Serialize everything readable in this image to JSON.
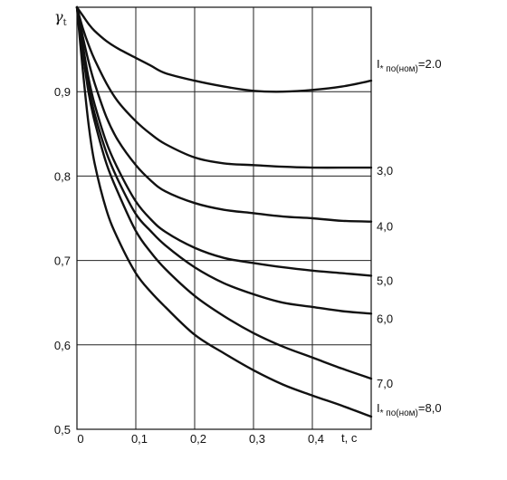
{
  "chart_data": {
    "type": "line",
    "ylabel": "γ",
    "ylabel_sub": "t",
    "xlabel": "t, c",
    "xlim": [
      0,
      0.5
    ],
    "ylim": [
      0.5,
      1.0
    ],
    "grid": true,
    "x_ticks": [
      {
        "value": 0,
        "label": "0"
      },
      {
        "value": 0.1,
        "label": "0,1"
      },
      {
        "value": 0.2,
        "label": "0,2"
      },
      {
        "value": 0.3,
        "label": "0,3"
      },
      {
        "value": 0.4,
        "label": "0,4"
      }
    ],
    "y_ticks": [
      {
        "value": 0.5,
        "label": "0,5"
      },
      {
        "value": 0.6,
        "label": "0,6"
      },
      {
        "value": 0.7,
        "label": "0,7"
      },
      {
        "value": 0.8,
        "label": "0,8"
      },
      {
        "value": 0.9,
        "label": "0,9"
      }
    ],
    "x": [
      0,
      0.01,
      0.02,
      0.03,
      0.05,
      0.07,
      0.1,
      0.125,
      0.15,
      0.2,
      0.25,
      0.3,
      0.35,
      0.4,
      0.45,
      0.5
    ],
    "series": [
      {
        "name": "I₊по(ном)=2,0",
        "label": "I",
        "label_sub": "* по(ном)",
        "label_tail": "=2.0",
        "values": [
          1.0,
          0.99,
          0.98,
          0.972,
          0.96,
          0.951,
          0.94,
          0.931,
          0.922,
          0.913,
          0.906,
          0.901,
          0.9,
          0.902,
          0.906,
          0.913
        ]
      },
      {
        "name": "3,0",
        "label": "3,0",
        "values": [
          1.0,
          0.975,
          0.955,
          0.938,
          0.91,
          0.888,
          0.865,
          0.85,
          0.838,
          0.822,
          0.815,
          0.813,
          0.811,
          0.81,
          0.81,
          0.81
        ]
      },
      {
        "name": "4,0",
        "label": "4,0",
        "values": [
          1.0,
          0.965,
          0.935,
          0.91,
          0.87,
          0.842,
          0.813,
          0.795,
          0.782,
          0.768,
          0.76,
          0.756,
          0.752,
          0.75,
          0.747,
          0.746
        ]
      },
      {
        "name": "5,0",
        "label": "5,0",
        "values": [
          1.0,
          0.955,
          0.915,
          0.885,
          0.84,
          0.808,
          0.77,
          0.749,
          0.734,
          0.715,
          0.703,
          0.697,
          0.692,
          0.688,
          0.685,
          0.682
        ]
      },
      {
        "name": "6,0",
        "label": "6,0",
        "values": [
          1.0,
          0.95,
          0.905,
          0.874,
          0.828,
          0.795,
          0.755,
          0.735,
          0.718,
          0.692,
          0.673,
          0.66,
          0.65,
          0.645,
          0.64,
          0.637
        ]
      },
      {
        "name": "7,0",
        "label": "7,0",
        "values": [
          1.0,
          0.945,
          0.898,
          0.865,
          0.815,
          0.78,
          0.735,
          0.71,
          0.69,
          0.658,
          0.634,
          0.614,
          0.598,
          0.585,
          0.572,
          0.56
        ]
      },
      {
        "name": "I₊по(ном)=8,0",
        "label": "I",
        "label_sub": "* по(ном)",
        "label_tail": "=8,0",
        "values": [
          1.0,
          0.925,
          0.86,
          0.815,
          0.76,
          0.725,
          0.685,
          0.663,
          0.645,
          0.612,
          0.59,
          0.57,
          0.553,
          0.54,
          0.528,
          0.515
        ]
      }
    ]
  }
}
